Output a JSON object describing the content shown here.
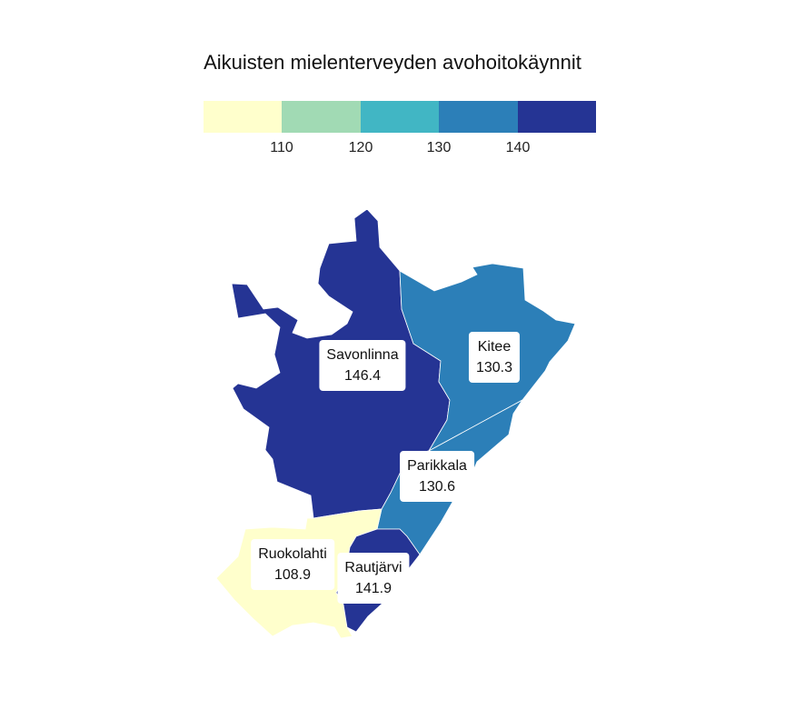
{
  "title": "Aikuisten mielenterveyden avohoitokäynnit",
  "legend": {
    "colors": [
      "#ffffcc",
      "#a1dab4",
      "#41b6c4",
      "#2c7fb8",
      "#253494"
    ],
    "ticks": [
      "110",
      "120",
      "130",
      "140"
    ]
  },
  "regions": [
    {
      "id": "savonlinna",
      "name": "Savonlinna",
      "value": "146.4",
      "color": "#253494"
    },
    {
      "id": "kitee",
      "name": "Kitee",
      "value": "130.3",
      "color": "#2c7fb8"
    },
    {
      "id": "parikkala",
      "name": "Parikkala",
      "value": "130.6",
      "color": "#2c7fb8"
    },
    {
      "id": "ruokolahti",
      "name": "Ruokolahti",
      "value": "108.9",
      "color": "#ffffcc"
    },
    {
      "id": "rautjarvi",
      "name": "Rautjärvi",
      "value": "141.9",
      "color": "#253494"
    }
  ]
}
